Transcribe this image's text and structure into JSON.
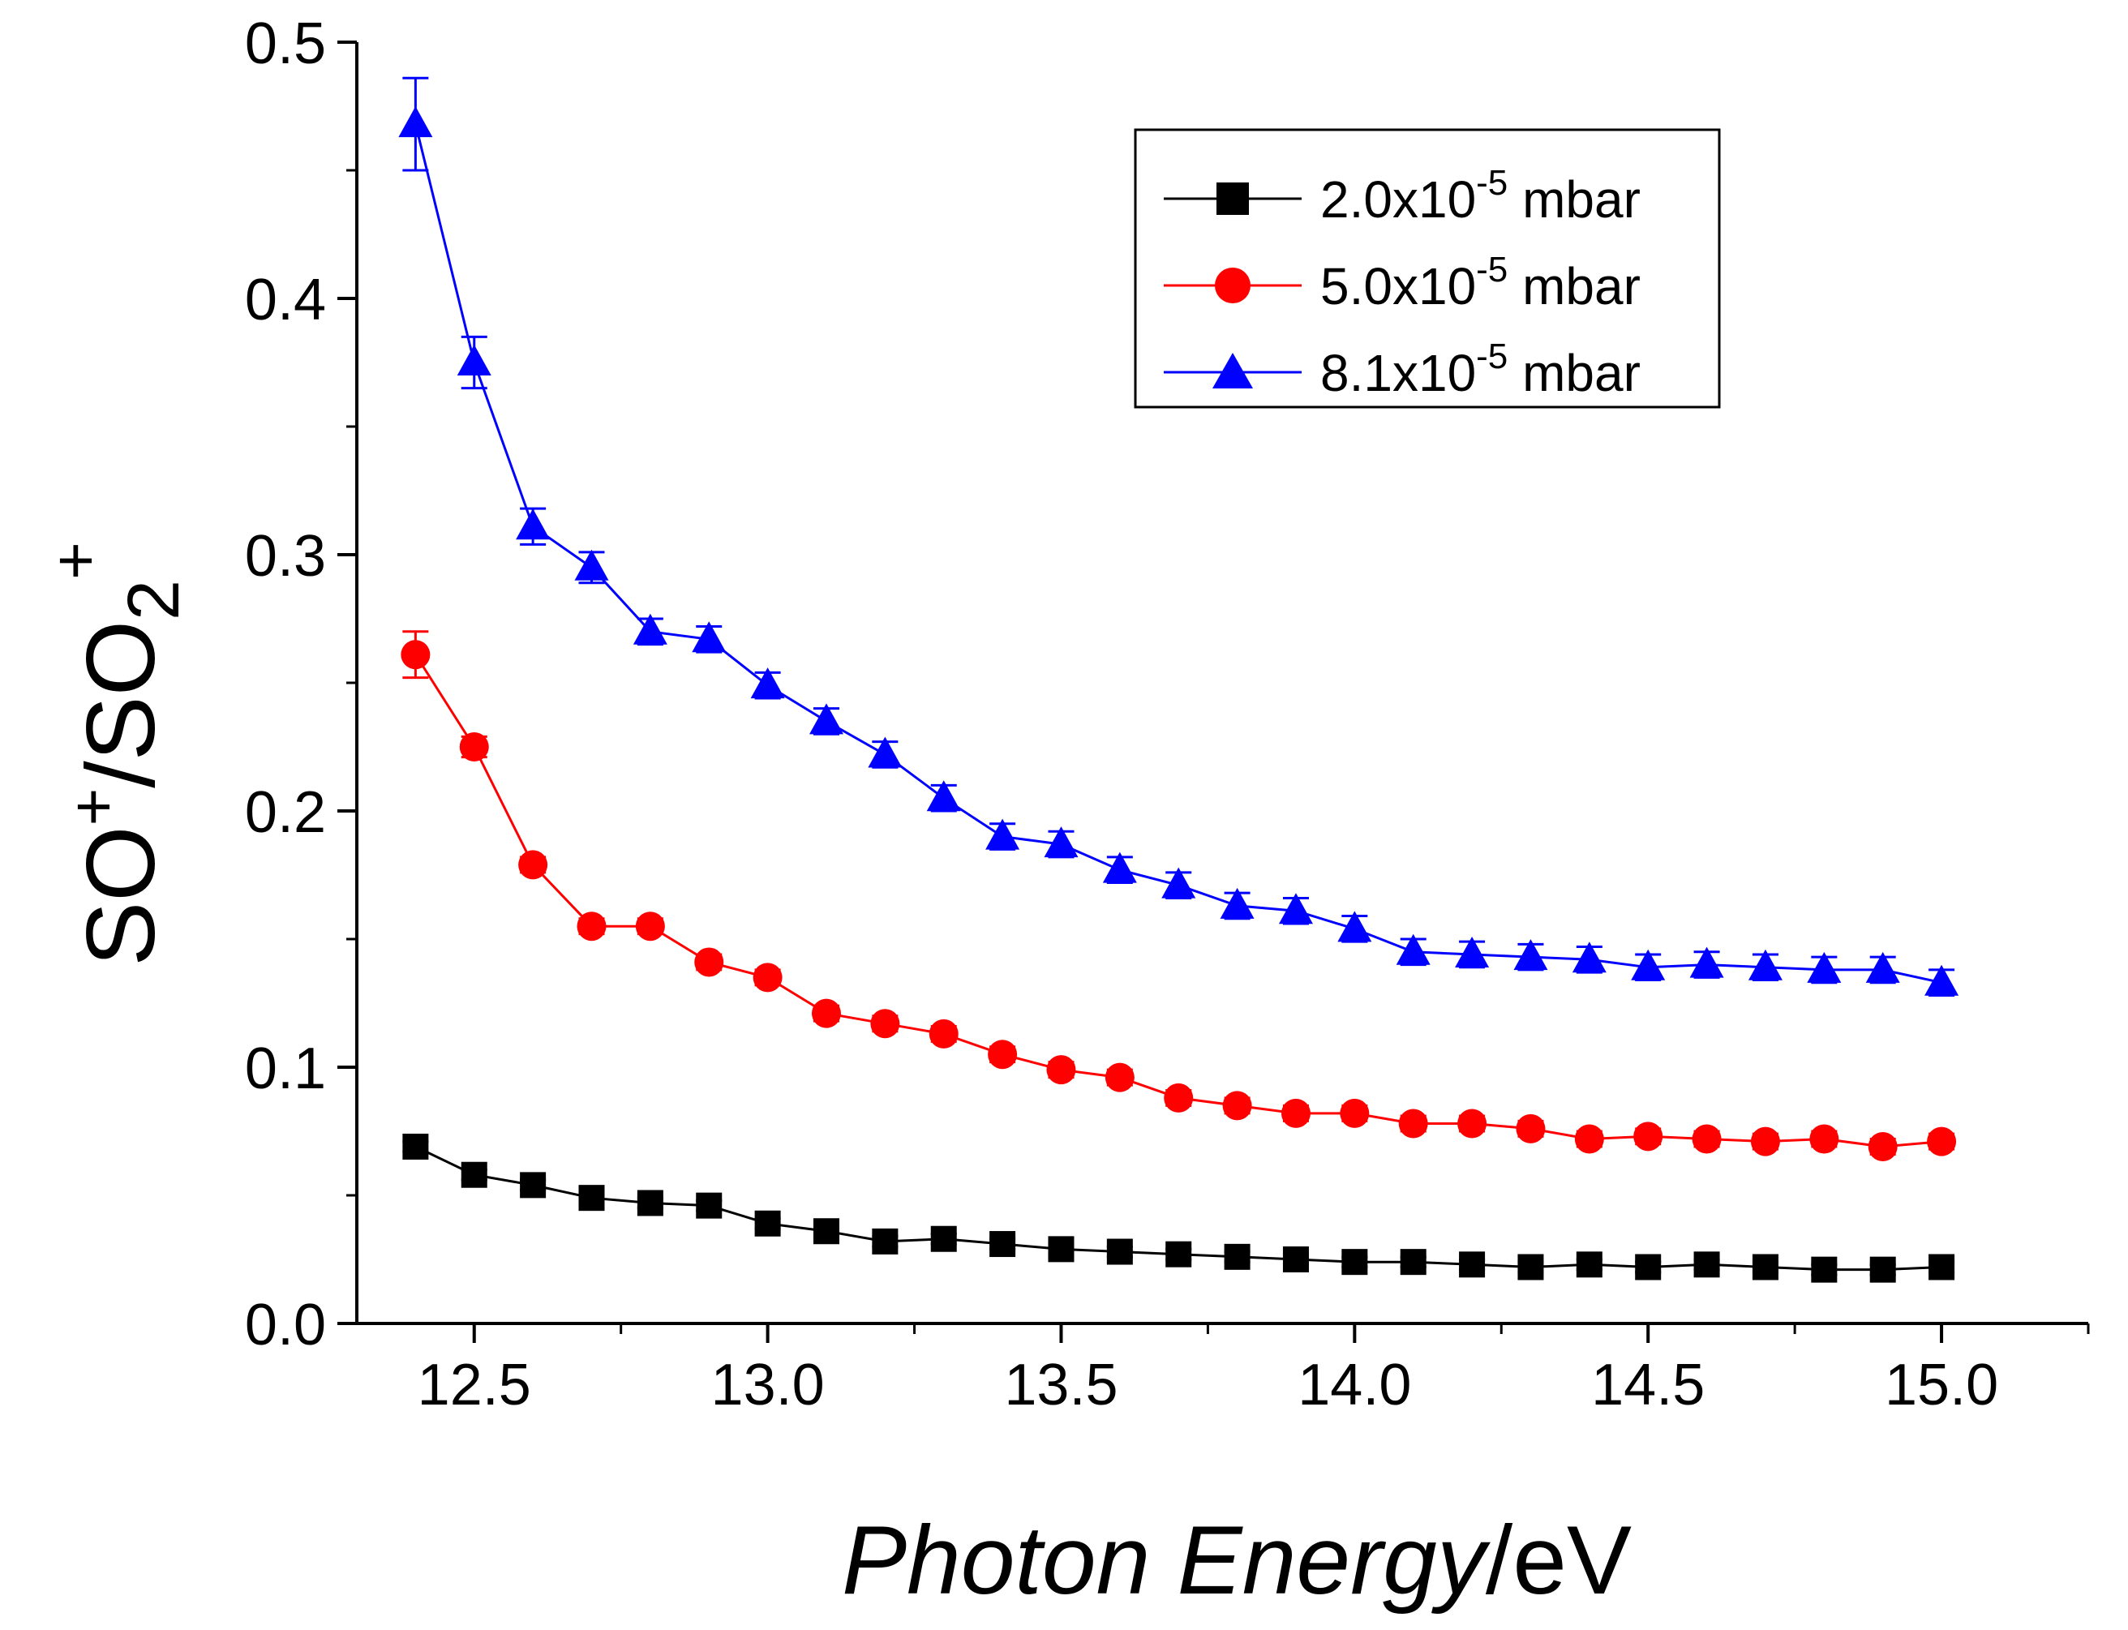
{
  "chart_data": {
    "type": "line",
    "title": "",
    "xlabel": {
      "italic_part": "Photon Energy",
      "unit_part": "/eV"
    },
    "ylabel": {
      "base1": "SO",
      "sup1": "+",
      "slash": "/SO",
      "sub": "2",
      "sup2": "+"
    },
    "xlim": [
      12.3,
      15.25
    ],
    "ylim": [
      0.0,
      0.5
    ],
    "x_ticks": [
      12.5,
      13.0,
      13.5,
      14.0,
      14.5,
      15.0
    ],
    "x_tick_labels": [
      "12.5",
      "13.0",
      "13.5",
      "14.0",
      "14.5",
      "15.0"
    ],
    "y_ticks": [
      0.0,
      0.1,
      0.2,
      0.3,
      0.4,
      0.5
    ],
    "y_tick_labels": [
      "0.0",
      "0.1",
      "0.2",
      "0.3",
      "0.4",
      "0.5"
    ],
    "legend_position": "top-right",
    "x": [
      12.4,
      12.5,
      12.6,
      12.7,
      12.8,
      12.9,
      13.0,
      13.1,
      13.2,
      13.3,
      13.4,
      13.5,
      13.6,
      13.7,
      13.8,
      13.9,
      14.0,
      14.1,
      14.2,
      14.3,
      14.4,
      14.5,
      14.6,
      14.7,
      14.8,
      14.9,
      15.0
    ],
    "series": [
      {
        "name": "2.0x10-5 mbar",
        "legend": {
          "pre": "2.0x10",
          "exp": "-5",
          "post": " mbar"
        },
        "color": "#000000",
        "marker": "square",
        "values": [
          0.069,
          0.058,
          0.054,
          0.049,
          0.047,
          0.046,
          0.039,
          0.036,
          0.032,
          0.033,
          0.031,
          0.029,
          0.028,
          0.027,
          0.026,
          0.025,
          0.024,
          0.024,
          0.023,
          0.022,
          0.023,
          0.022,
          0.023,
          0.022,
          0.021,
          0.021,
          0.022
        ],
        "errors": [
          0.002,
          0.002,
          0.002,
          0.002,
          0.002,
          0.002,
          0.002,
          0.002,
          0.002,
          0.002,
          0.002,
          0.002,
          0.002,
          0.002,
          0.002,
          0.002,
          0.002,
          0.002,
          0.002,
          0.002,
          0.002,
          0.002,
          0.002,
          0.002,
          0.002,
          0.002,
          0.002
        ]
      },
      {
        "name": "5.0x10-5 mbar",
        "legend": {
          "pre": "5.0x10",
          "exp": "-5",
          "post": " mbar"
        },
        "color": "#ff0000",
        "marker": "circle",
        "values": [
          0.261,
          0.225,
          0.179,
          0.155,
          0.155,
          0.141,
          0.135,
          0.121,
          0.117,
          0.113,
          0.105,
          0.099,
          0.096,
          0.088,
          0.085,
          0.082,
          0.082,
          0.078,
          0.078,
          0.076,
          0.072,
          0.073,
          0.072,
          0.071,
          0.072,
          0.069,
          0.071
        ],
        "errors": [
          0.009,
          0.004,
          0.003,
          0.003,
          0.003,
          0.003,
          0.003,
          0.003,
          0.003,
          0.003,
          0.003,
          0.003,
          0.003,
          0.003,
          0.003,
          0.003,
          0.003,
          0.003,
          0.003,
          0.003,
          0.003,
          0.003,
          0.003,
          0.003,
          0.003,
          0.003,
          0.003
        ]
      },
      {
        "name": "8.1x10-5 mbar",
        "legend": {
          "pre": "8.1x10",
          "exp": "-5",
          "post": " mbar"
        },
        "color": "#0000ff",
        "marker": "triangle",
        "values": [
          0.468,
          0.375,
          0.311,
          0.295,
          0.27,
          0.267,
          0.249,
          0.235,
          0.222,
          0.205,
          0.19,
          0.187,
          0.177,
          0.171,
          0.163,
          0.161,
          0.154,
          0.145,
          0.144,
          0.143,
          0.142,
          0.139,
          0.14,
          0.139,
          0.138,
          0.138,
          0.133
        ],
        "errors": [
          0.018,
          0.01,
          0.007,
          0.006,
          0.005,
          0.005,
          0.005,
          0.005,
          0.005,
          0.005,
          0.005,
          0.005,
          0.005,
          0.005,
          0.005,
          0.005,
          0.005,
          0.005,
          0.005,
          0.005,
          0.005,
          0.005,
          0.005,
          0.005,
          0.005,
          0.005,
          0.005
        ]
      }
    ]
  }
}
